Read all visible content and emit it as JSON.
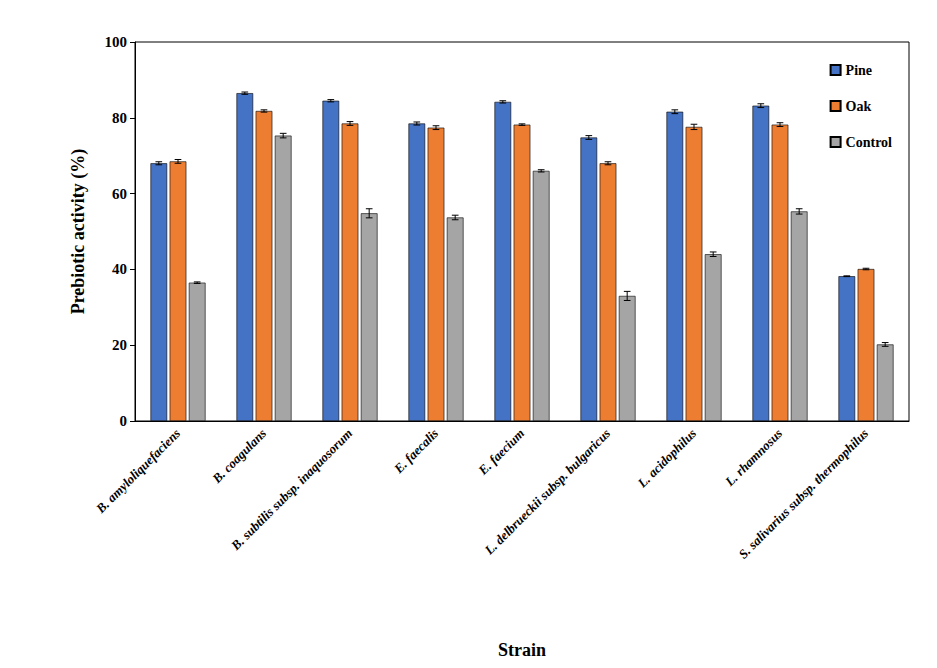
{
  "chart_data": {
    "type": "bar",
    "x_label": "Strain",
    "y_label": "Prebiotic activity (%)",
    "categories": [
      "B. amyloliquefaciens",
      "B. coagulans",
      "B. subtilis subsp. inaquosorum",
      "E. faecalis",
      "E. faecium",
      "L. delbrueckii subsp. bulgaricus",
      "L. acidophilus",
      "L. rhamnosus",
      "S. salivarius subsp. thermophilus"
    ],
    "series": [
      {
        "name": "Pine",
        "color": "#4472c4",
        "values": [
          68,
          86.5,
          84.5,
          78.5,
          84.2,
          74.8,
          81.6,
          83.2,
          38.2
        ],
        "errors": [
          0.4,
          0.3,
          0.3,
          0.4,
          0.3,
          0.5,
          0.5,
          0.5,
          0.1
        ]
      },
      {
        "name": "Oak",
        "color": "#ed7d31",
        "values": [
          68.5,
          81.8,
          78.5,
          77.4,
          78.2,
          68,
          77.6,
          78.2,
          40.1
        ],
        "errors": [
          0.5,
          0.3,
          0.5,
          0.5,
          0.2,
          0.4,
          0.7,
          0.5,
          0.2
        ]
      },
      {
        "name": "Control",
        "color": "#a5a5a5",
        "values": [
          36.5,
          75.3,
          54.8,
          53.7,
          66,
          33,
          44,
          55.3,
          20.2
        ],
        "errors": [
          0.2,
          0.6,
          1.2,
          0.6,
          0.3,
          1.2,
          0.6,
          0.7,
          0.5
        ]
      }
    ],
    "ylim": [
      0,
      100
    ],
    "yticks": [
      0,
      20,
      40,
      60,
      80,
      100
    ],
    "grid": false,
    "legend": "upper right"
  }
}
